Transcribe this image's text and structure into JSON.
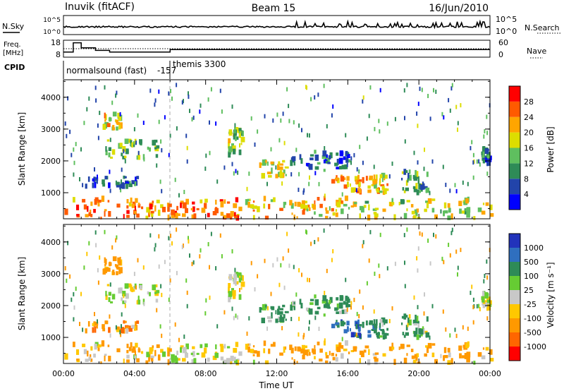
{
  "header": {
    "station": "Inuvik (fitACF)",
    "beam": "Beam 15",
    "date": "16/Jun/2010"
  },
  "noise_panel": {
    "left_label": "N.Sky",
    "right_label": "N.Search",
    "left_ticks": [
      "10^5",
      "10^0"
    ],
    "right_ticks": [
      "10^5",
      "10^0"
    ]
  },
  "freq_panel": {
    "left_label_1": "Freq.",
    "left_label_2": "[MHz]",
    "right_label": "Nave",
    "left_ticks": [
      "18",
      "8"
    ],
    "right_ticks": [
      "60",
      "0"
    ],
    "freq_segments": [
      {
        "t0": 0.0,
        "t1": 0.55,
        "mhz": 11.0
      },
      {
        "t0": 0.55,
        "t1": 1.0,
        "mhz": 16.5
      },
      {
        "t0": 1.0,
        "t1": 1.8,
        "mhz": 13.5
      },
      {
        "t0": 1.8,
        "t1": 2.6,
        "mhz": 12.0
      },
      {
        "t0": 2.6,
        "t1": 6.0,
        "mhz": 11.0
      },
      {
        "t0": 6.0,
        "t1": 24.0,
        "mhz": 12.5
      }
    ]
  },
  "cpid": {
    "label": "CPID",
    "segments": [
      {
        "name": "normalsound (fast)",
        "id": "-157",
        "start": 0,
        "end": 6
      },
      {
        "name": "themis 3300",
        "start": 6,
        "end": 24
      }
    ]
  },
  "power_panel": {
    "ylabel": "Slant Range [km]",
    "yticks": [
      "1000",
      "2000",
      "3000",
      "4000"
    ],
    "colorbar_label": "Power [dB]",
    "colorbar_ticks": [
      "4",
      "8",
      "12",
      "16",
      "20",
      "24",
      "28"
    ]
  },
  "velocity_panel": {
    "ylabel": "Slant Range [km]",
    "yticks": [
      "1000",
      "2000",
      "3000",
      "4000"
    ],
    "colorbar_label": "Velocity [m s⁻¹]",
    "colorbar_ticks": [
      "1000",
      "500",
      "100",
      "25",
      "-25",
      "-100",
      "-500",
      "-1000"
    ]
  },
  "x_axis": {
    "label": "Time UT",
    "ticks": [
      "00:00",
      "04:00",
      "08:00",
      "12:00",
      "16:00",
      "20:00",
      "00:00"
    ]
  },
  "colors": {
    "power_scale": [
      "#0000ff",
      "#2244aa",
      "#2e8b57",
      "#5fbf5f",
      "#dddd00",
      "#ffa500",
      "#ff5a00",
      "#ff0000"
    ],
    "velocity_scale": [
      "#2233bb",
      "#2f6fbf",
      "#2e8b57",
      "#66cc33",
      "#c8c8c8",
      "#ffc800",
      "#ff9900",
      "#ff6600",
      "#ff0000"
    ]
  },
  "chart_data": {
    "type": "heatmap",
    "x_range_hours": [
      0,
      24
    ],
    "y_range_km": [
      180,
      4550
    ],
    "regions": [
      {
        "t0": 0.0,
        "t1": 6.0,
        "r0": 200,
        "r1": 820,
        "pow": 24,
        "vel": -150
      },
      {
        "t0": 6.0,
        "t1": 10.0,
        "r0": 200,
        "r1": 800,
        "pow": 25,
        "vel": 0
      },
      {
        "t0": 10.0,
        "t1": 16.0,
        "r0": 200,
        "r1": 850,
        "pow": 20,
        "vel": -150
      },
      {
        "t0": 16.0,
        "t1": 24.0,
        "r0": 200,
        "r1": 800,
        "pow": 17,
        "vel": -150
      },
      {
        "t0": 1.2,
        "t1": 4.2,
        "r0": 1200,
        "r1": 1500,
        "pow": 8,
        "vel": -300
      },
      {
        "t0": 2.3,
        "t1": 5.3,
        "r0": 2100,
        "r1": 2650,
        "pow": 14,
        "vel": 10
      },
      {
        "t0": 2.2,
        "t1": 3.2,
        "r0": 3000,
        "r1": 3500,
        "pow": 20,
        "vel": -200
      },
      {
        "t0": 9.2,
        "t1": 10.1,
        "r0": 2200,
        "r1": 3000,
        "pow": 15,
        "vel": 0
      },
      {
        "t0": 11.0,
        "t1": 12.5,
        "r0": 1500,
        "r1": 2000,
        "pow": 18,
        "vel": 200
      },
      {
        "t0": 12.5,
        "t1": 16.0,
        "r0": 1700,
        "r1": 2300,
        "pow": 8,
        "vel": 200
      },
      {
        "t0": 15.0,
        "t1": 17.3,
        "r0": 1000,
        "r1": 1500,
        "pow": 22,
        "vel": 600
      },
      {
        "t0": 17.3,
        "t1": 18.2,
        "r0": 1000,
        "r1": 1550,
        "pow": 19,
        "vel": 300
      },
      {
        "t0": 19.0,
        "t1": 20.5,
        "r0": 900,
        "r1": 1700,
        "pow": 12,
        "vel": 150
      },
      {
        "t0": 23.5,
        "t1": 24.0,
        "r0": 1900,
        "r1": 2400,
        "pow": 8,
        "vel": 10
      }
    ]
  }
}
